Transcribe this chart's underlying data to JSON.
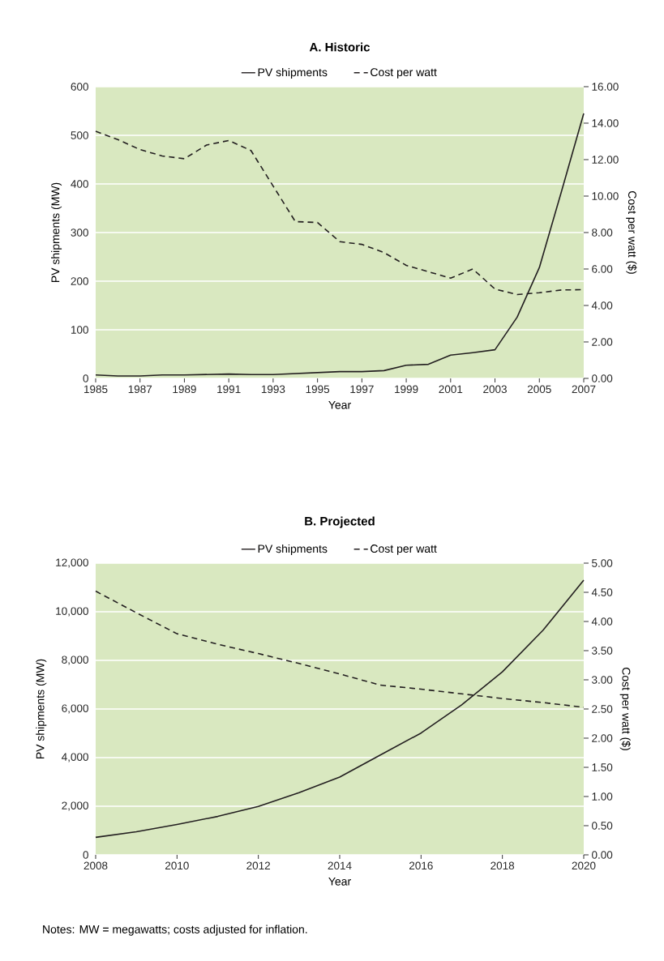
{
  "chart_data": [
    {
      "type": "line",
      "title": "A. Historic",
      "xlabel": "Year",
      "ylabel": "PV shipments (MW)",
      "y2label": "Cost per watt ($)",
      "x": [
        1985,
        1986,
        1987,
        1988,
        1989,
        1990,
        1991,
        1992,
        1993,
        1994,
        1995,
        1996,
        1997,
        1998,
        1999,
        2000,
        2001,
        2002,
        2003,
        2004,
        2005,
        2006,
        2007
      ],
      "series": [
        {
          "name": "PV shipments",
          "color": "#231f20",
          "line_style": "solid",
          "values": [
            7,
            5,
            5,
            7,
            7,
            8,
            9,
            8,
            8,
            10,
            12,
            14,
            14,
            16,
            27,
            29,
            48,
            53,
            59,
            126,
            228,
            385,
            545
          ]
        },
        {
          "name": "Cost per watt",
          "color": "#231f20",
          "line_style": "dashed",
          "axis": "y2",
          "values": [
            13.55,
            13.1,
            12.55,
            12.2,
            12.05,
            12.8,
            13.05,
            12.5,
            10.55,
            8.6,
            8.55,
            7.5,
            7.35,
            6.9,
            6.2,
            5.85,
            5.5,
            6.0,
            4.9,
            4.6,
            4.7,
            4.85,
            4.87
          ]
        }
      ],
      "xlim": [
        1985,
        2007
      ],
      "xticks": [
        1985,
        1987,
        1989,
        1991,
        1993,
        1995,
        1997,
        1999,
        2001,
        2003,
        2005,
        2007
      ],
      "ylim": [
        0,
        600
      ],
      "yticks": [
        0,
        100,
        200,
        300,
        400,
        500,
        600
      ],
      "y2lim": [
        0,
        16
      ],
      "y2ticks": [
        {
          "value": 0,
          "label": "0.00"
        },
        {
          "value": 2,
          "label": "2.00"
        },
        {
          "value": 4,
          "label": "4.00"
        },
        {
          "value": 6,
          "label": "6.00"
        },
        {
          "value": 8,
          "label": "8.00"
        },
        {
          "value": 10,
          "label": "10.00"
        },
        {
          "value": 12,
          "label": "12.00"
        },
        {
          "value": 14,
          "label": "14.00"
        },
        {
          "value": 16,
          "label": "16.00"
        }
      ],
      "grid": "y",
      "legend": "top"
    },
    {
      "type": "line",
      "title": "B. Projected",
      "xlabel": "Year",
      "ylabel": "PV shipments (MW)",
      "y2label": "Cost per watt ($)",
      "x": [
        2008,
        2009,
        2010,
        2011,
        2012,
        2013,
        2014,
        2015,
        2016,
        2017,
        2018,
        2019,
        2020
      ],
      "series": [
        {
          "name": "PV shipments",
          "color": "#231f20",
          "line_style": "solid",
          "values": [
            720,
            950,
            1250,
            1580,
            1990,
            2560,
            3200,
            4110,
            5010,
            6170,
            7530,
            9240,
            11300
          ]
        },
        {
          "name": "Cost per watt",
          "color": "#231f20",
          "line_style": "dashed",
          "axis": "y2",
          "values": [
            4.52,
            4.15,
            3.79,
            3.61,
            3.45,
            3.28,
            3.1,
            2.91,
            2.84,
            2.76,
            2.68,
            2.61,
            2.53
          ]
        }
      ],
      "xlim": [
        2008,
        2020
      ],
      "xticks": [
        2008,
        2010,
        2012,
        2014,
        2016,
        2018,
        2020
      ],
      "ylim": [
        0,
        12000
      ],
      "yticks": [
        0,
        {
          "value": 2000,
          "label": "2,000"
        },
        {
          "value": 4000,
          "label": "4,000"
        },
        {
          "value": 6000,
          "label": "6,000"
        },
        {
          "value": 8000,
          "label": "8,000"
        },
        {
          "value": 10000,
          "label": "10,000"
        },
        {
          "value": 12000,
          "label": "12,000"
        }
      ],
      "y2lim": [
        0,
        5
      ],
      "y2ticks": [
        {
          "value": 0,
          "label": "0.00"
        },
        {
          "value": 0.5,
          "label": "0.50"
        },
        {
          "value": 1,
          "label": "1.00"
        },
        {
          "value": 1.5,
          "label": "1.50"
        },
        {
          "value": 2,
          "label": "2.00"
        },
        {
          "value": 2.5,
          "label": "2.50"
        },
        {
          "value": 3,
          "label": "3.00"
        },
        {
          "value": 3.5,
          "label": "3.50"
        },
        {
          "value": 4,
          "label": "4.00"
        },
        {
          "value": 4.5,
          "label": "4.50"
        },
        {
          "value": 5,
          "label": "5.00"
        }
      ],
      "grid": "y",
      "legend": "top",
      "annotations": [
        "Notes: MW = megawatts; costs adjusted for inflation."
      ]
    }
  ]
}
